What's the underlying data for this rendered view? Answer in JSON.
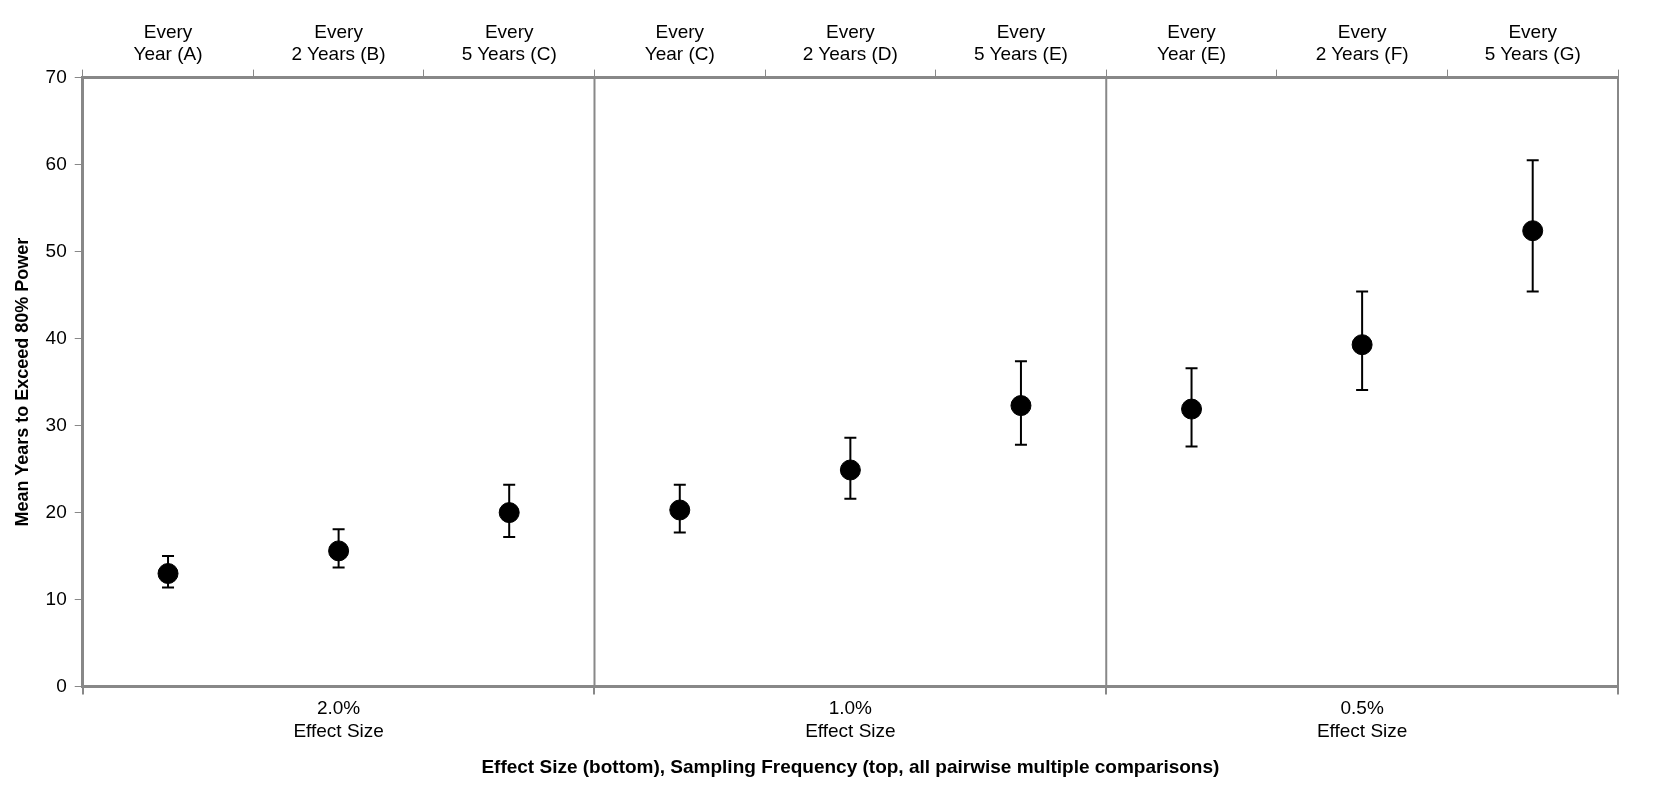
{
  "chart_data": {
    "type": "scatter",
    "xlabel": "Effect Size (bottom), Sampling Frequency (top, all pairwise multiple comparisons)",
    "ylabel": "Mean Years to Exceed 80% Power",
    "categories": [
      "Every\nYear (A)",
      "Every\n2 Years (B)",
      "Every\n5 Years (C)",
      "Every\nYear (C)",
      "Every\n2 Years (D)",
      "Every\n5 Years (E)",
      "Every\nYear (E)",
      "Every\n2 Years (F)",
      "Every\n5 Years (G)"
    ],
    "values": [
      13.0,
      15.6,
      20.0,
      20.3,
      24.9,
      32.3,
      31.9,
      39.3,
      52.4
    ],
    "errors": [
      [
        11.4,
        15.0
      ],
      [
        13.7,
        18.1
      ],
      [
        17.2,
        23.2
      ],
      [
        17.7,
        23.2
      ],
      [
        21.6,
        28.6
      ],
      [
        27.8,
        37.4
      ],
      [
        27.6,
        36.6
      ],
      [
        34.1,
        45.4
      ],
      [
        45.4,
        60.5
      ]
    ],
    "color": "#000000",
    "marker": "circle",
    "annotations": [
      "2.0%\nEffect Size",
      "1.0%\nEffect Size",
      "0.5%\nEffect Size"
    ],
    "ylim": [
      0,
      70
    ],
    "yticks": [
      0,
      10,
      20,
      30,
      40,
      50,
      60,
      70
    ],
    "grid": false,
    "legend": false
  }
}
